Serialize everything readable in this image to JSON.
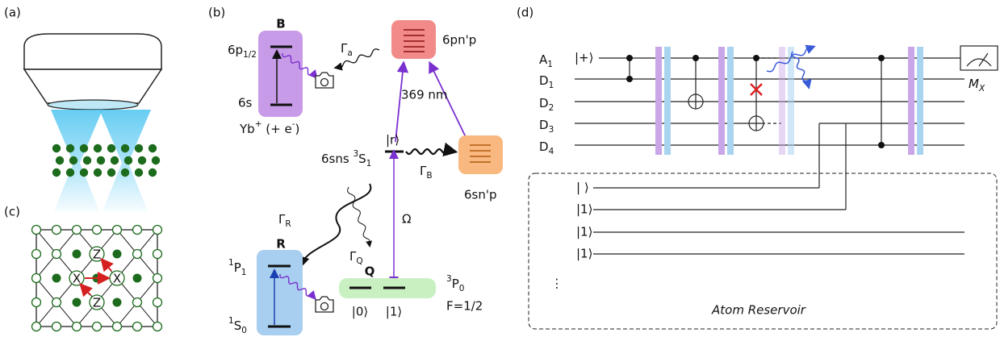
{
  "panel_labels": [
    "(a)",
    "(b)",
    "(c)",
    "(d)"
  ],
  "energy_levels": {
    "ion": {
      "letter": "B",
      "upper": {
        "text": "6p",
        "sub": "1/2"
      },
      "lower": "6s",
      "caption": {
        "text": "Yb",
        "sup": "+",
        "rest": " (+ e",
        "sup2": "-",
        "end": ")"
      }
    },
    "gamma_a": {
      "text": "Γ",
      "sub": "a"
    },
    "upper_p": "6pn'p",
    "wavelength": "369 nm",
    "rydberg_ket": "|r⟩",
    "rydberg_state": {
      "text": "6sns ",
      "sup": "3",
      "rest": "S",
      "sub": "1"
    },
    "gamma_b": {
      "text": "Γ",
      "sub": "B"
    },
    "lower_p": "6sn'p",
    "gamma_r": {
      "text": "Γ",
      "sub": "R"
    },
    "rabi": "Ω",
    "gamma_q": {
      "text": "Γ",
      "sub": "Q"
    },
    "readout": {
      "letter": "R",
      "upper": {
        "sup": "1",
        "text": "P",
        "sub": "1"
      },
      "lower": {
        "sup": "1",
        "text": "S",
        "sub": "0"
      }
    },
    "qubit": {
      "letter": "Q",
      "ket0": "|0⟩",
      "ket1": "|1⟩",
      "state": {
        "sup": "3",
        "text": "P",
        "sub": "0"
      },
      "spin": "F=1/2"
    }
  },
  "surface_code": {
    "stabilizers": [
      "Z",
      "X",
      "X",
      "Z"
    ]
  },
  "circuit": {
    "wires": [
      {
        "text": "A",
        "sub": "1"
      },
      {
        "text": "D",
        "sub": "1"
      },
      {
        "text": "D",
        "sub": "2"
      },
      {
        "text": "D",
        "sub": "3"
      },
      {
        "text": "D",
        "sub": "4"
      }
    ],
    "ancilla_init": "|+⟩",
    "measurement": {
      "text": "M",
      "sub": "X"
    },
    "reservoir_kets": [
      "| ⟩",
      "|1⟩",
      "|1⟩",
      "|1⟩"
    ],
    "ellipsis": "⋮",
    "reservoir_label": "Atom Reservoir"
  }
}
